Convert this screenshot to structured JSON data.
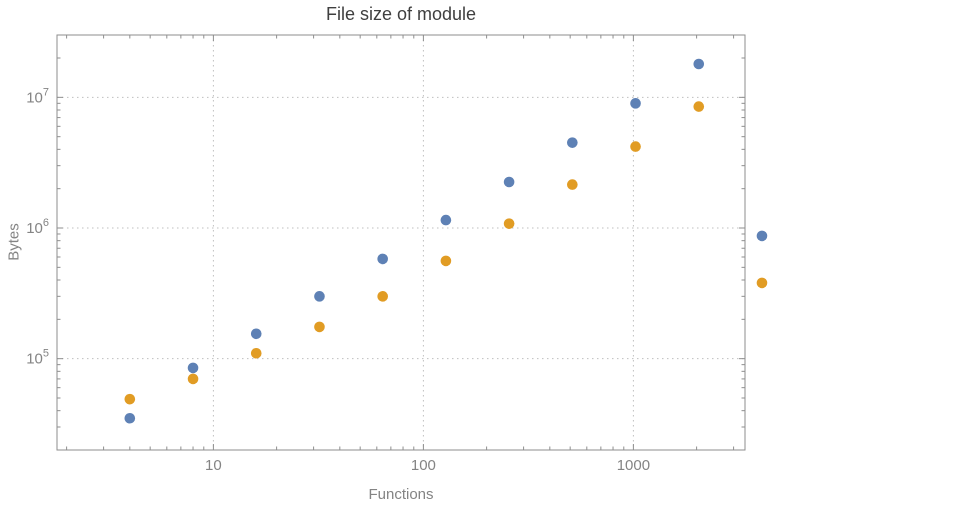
{
  "chart_data": {
    "type": "scatter",
    "title": "File size of module",
    "xlabel": "Functions",
    "ylabel": "Bytes",
    "x_scale": "log",
    "y_scale": "log",
    "xlim": [
      1.8,
      3400
    ],
    "ylim": [
      20000,
      30000000
    ],
    "grid": "dotted",
    "legend": "none",
    "frame": true,
    "x_ticks": [
      {
        "value": 10,
        "label": "10"
      },
      {
        "value": 100,
        "label": "100"
      },
      {
        "value": 1000,
        "label": "1000"
      }
    ],
    "y_ticks": [
      {
        "value": 100000,
        "base": "10",
        "exp": "5"
      },
      {
        "value": 1000000,
        "base": "10",
        "exp": "6"
      },
      {
        "value": 10000000,
        "base": "10",
        "exp": "7"
      }
    ],
    "x": [
      4,
      8,
      16,
      32,
      64,
      128,
      256,
      512,
      1024,
      2048,
      4096
    ],
    "series": [
      {
        "name": "blue-series",
        "color": "#5e81b5",
        "values": [
          35000,
          85000,
          155000,
          300000,
          580000,
          1150000,
          2250000,
          4500000,
          9000000,
          18000000,
          870000
        ]
      },
      {
        "name": "orange-series",
        "color": "#e19c24",
        "values": [
          49000,
          70000,
          110000,
          175000,
          300000,
          560000,
          1080000,
          2150000,
          4200000,
          8500000,
          380000
        ]
      }
    ]
  },
  "style_colors": {
    "frame": "#8e8e8e",
    "grid": "#bfbfbf",
    "tick_label": "#848484",
    "title": "#3f3f3f",
    "background": "#ffffff"
  }
}
